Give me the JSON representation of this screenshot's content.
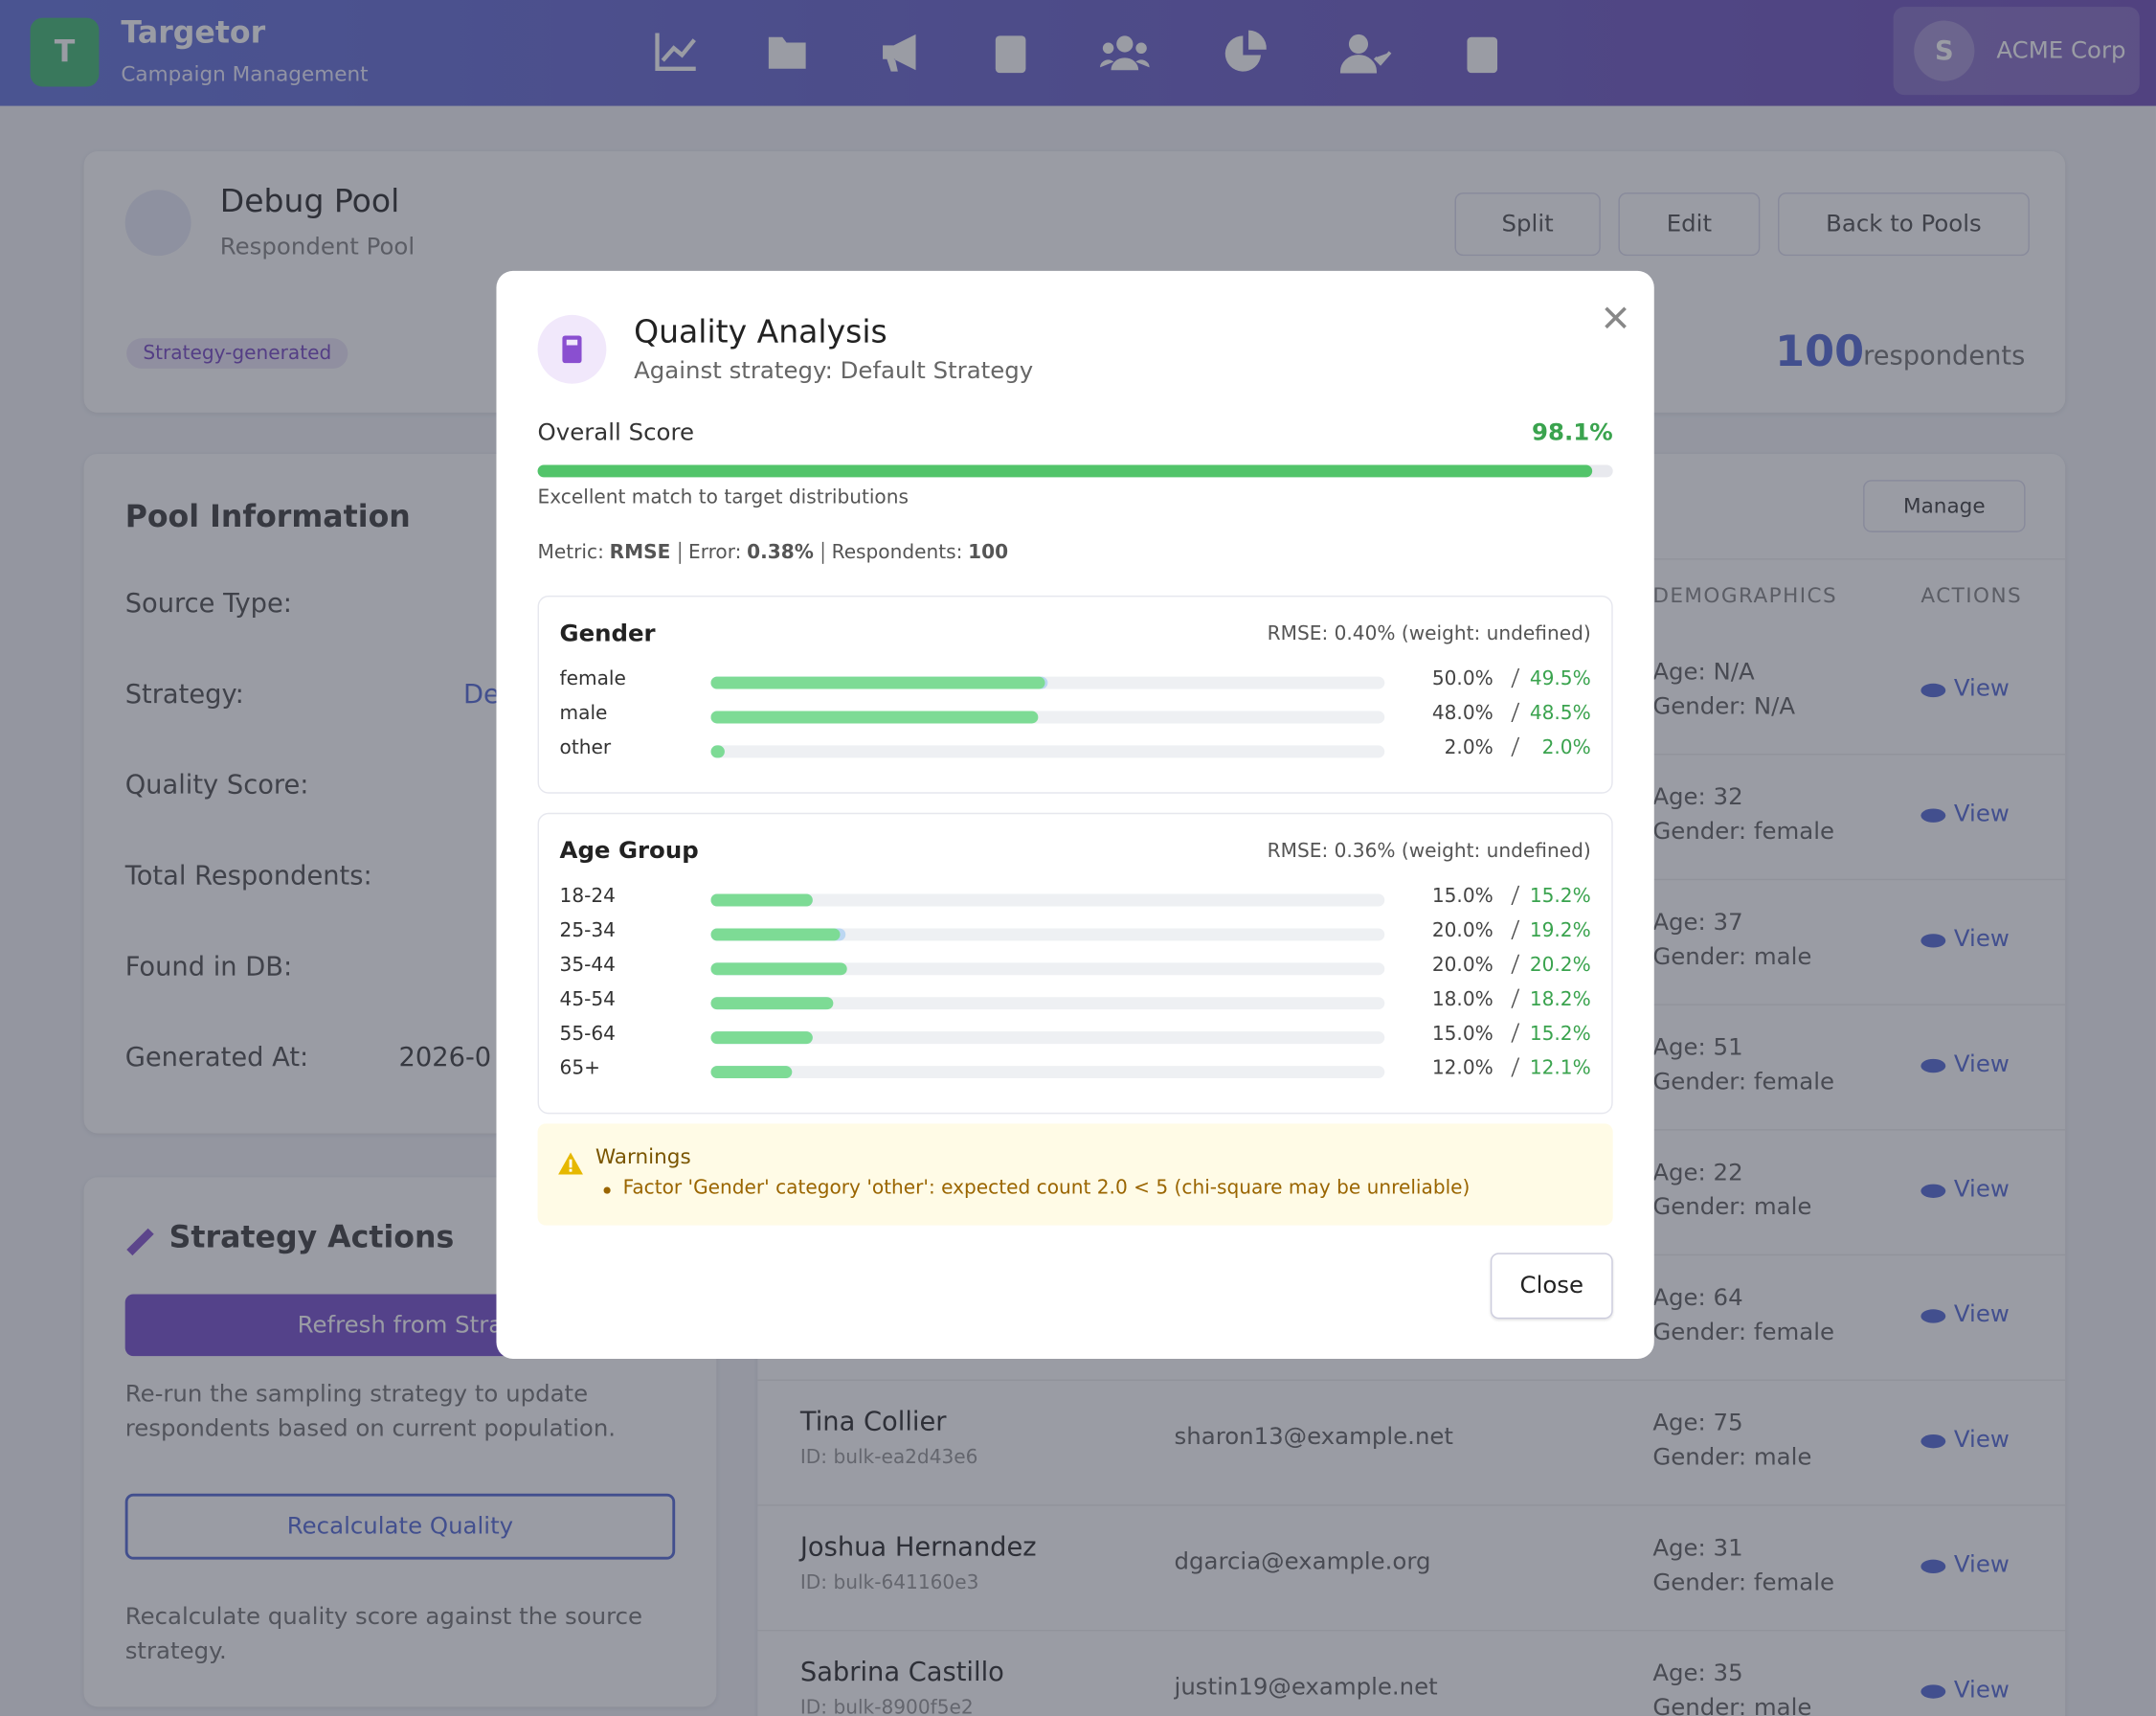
{
  "nav": {
    "logo": "T",
    "brand": "Targetor",
    "subtitle": "Campaign Management",
    "avatar": "S",
    "org": "ACME Corp"
  },
  "pool": {
    "title": "Debug Pool",
    "subtitle": "Respondent Pool",
    "buttons": [
      "Split",
      "Edit",
      "Back to Pools"
    ],
    "badge": "Strategy-generated",
    "count": "100",
    "count_label": "respondents"
  },
  "info": {
    "heading": "Pool Information",
    "labels": [
      "Source Type:",
      "Strategy:",
      "Quality Score:",
      "Total Respondents:",
      "Found in DB:",
      "Generated At:"
    ],
    "strategy_value": "De",
    "generated_value": "2026-0"
  },
  "actions": {
    "heading": "Strategy Actions",
    "refresh": "Refresh from Stra",
    "refresh_desc": "Re-run the sampling strategy to update respondents based on current population.",
    "recalc": "Recalculate Quality",
    "recalc_desc": "Recalculate quality score against the source strategy."
  },
  "table": {
    "manage": "Manage",
    "headers": [
      "DEMOGRAPHICS",
      "ACTIONS"
    ],
    "view": "View",
    "rows": [
      {
        "age": "Age: N/A",
        "gender": "Gender: N/A"
      },
      {
        "age": "Age: 32",
        "gender": "Gender: female"
      },
      {
        "age": "Age: 37",
        "gender": "Gender: male"
      },
      {
        "age": "Age: 51",
        "gender": "Gender: female"
      },
      {
        "age": "Age: 22",
        "gender": "Gender: male"
      },
      {
        "age": "Age: 64",
        "gender": "Gender: female"
      },
      {
        "name": "Tina Collier",
        "id": "ID: bulk-ea2d43e6",
        "email": "sharon13@example.net",
        "age": "Age: 75",
        "gender": "Gender: male"
      },
      {
        "name": "Joshua Hernandez",
        "id": "ID: bulk-641160e3",
        "email": "dgarcia@example.org",
        "age": "Age: 31",
        "gender": "Gender: female"
      },
      {
        "name": "Sabrina Castillo",
        "id": "ID: bulk-8900f5e2",
        "email": "justin19@example.net",
        "age": "Age: 35",
        "gender": "Gender: male"
      }
    ]
  },
  "modal": {
    "title": "Quality Analysis",
    "subtitle": "Against strategy: Default Strategy",
    "overall_label": "Overall Score",
    "score": {
      "value": 98.1,
      "label": "98.1%"
    },
    "description": "Excellent match to target distributions",
    "metrics": [
      [
        "Metric:",
        "RMSE"
      ],
      [
        "Error:",
        "0.38%"
      ],
      [
        "Respondents:",
        "100"
      ]
    ],
    "factors": [
      {
        "name": "Gender",
        "rmse": "RMSE: 0.40% (weight: undefined)",
        "categories": [
          {
            "name": "female",
            "target": {
              "value": 50.0,
              "label": "50.0%"
            },
            "actual": {
              "value": 49.5,
              "label": "49.5%"
            }
          },
          {
            "name": "male",
            "target": {
              "value": 48.0,
              "label": "48.0%"
            },
            "actual": {
              "value": 48.5,
              "label": "48.5%"
            }
          },
          {
            "name": "other",
            "target": {
              "value": 2.0,
              "label": "2.0%"
            },
            "actual": {
              "value": 2.0,
              "label": "2.0%"
            }
          }
        ]
      },
      {
        "name": "Age Group",
        "rmse": "RMSE: 0.36% (weight: undefined)",
        "categories": [
          {
            "name": "18-24",
            "target": {
              "value": 15.0,
              "label": "15.0%"
            },
            "actual": {
              "value": 15.2,
              "label": "15.2%"
            }
          },
          {
            "name": "25-34",
            "target": {
              "value": 20.0,
              "label": "20.0%"
            },
            "actual": {
              "value": 19.2,
              "label": "19.2%"
            }
          },
          {
            "name": "35-44",
            "target": {
              "value": 20.0,
              "label": "20.0%"
            },
            "actual": {
              "value": 20.2,
              "label": "20.2%"
            }
          },
          {
            "name": "45-54",
            "target": {
              "value": 18.0,
              "label": "18.0%"
            },
            "actual": {
              "value": 18.2,
              "label": "18.2%"
            }
          },
          {
            "name": "55-64",
            "target": {
              "value": 15.0,
              "label": "15.0%"
            },
            "actual": {
              "value": 15.2,
              "label": "15.2%"
            }
          },
          {
            "name": "65+",
            "target": {
              "value": 12.0,
              "label": "12.0%"
            },
            "actual": {
              "value": 12.1,
              "label": "12.1%"
            }
          }
        ]
      }
    ],
    "warnings_title": "Warnings",
    "warnings": [
      "Factor 'Gender' category 'other': expected count 2.0 < 5 (chi-square may be unreliable)"
    ],
    "close": "Close"
  }
}
